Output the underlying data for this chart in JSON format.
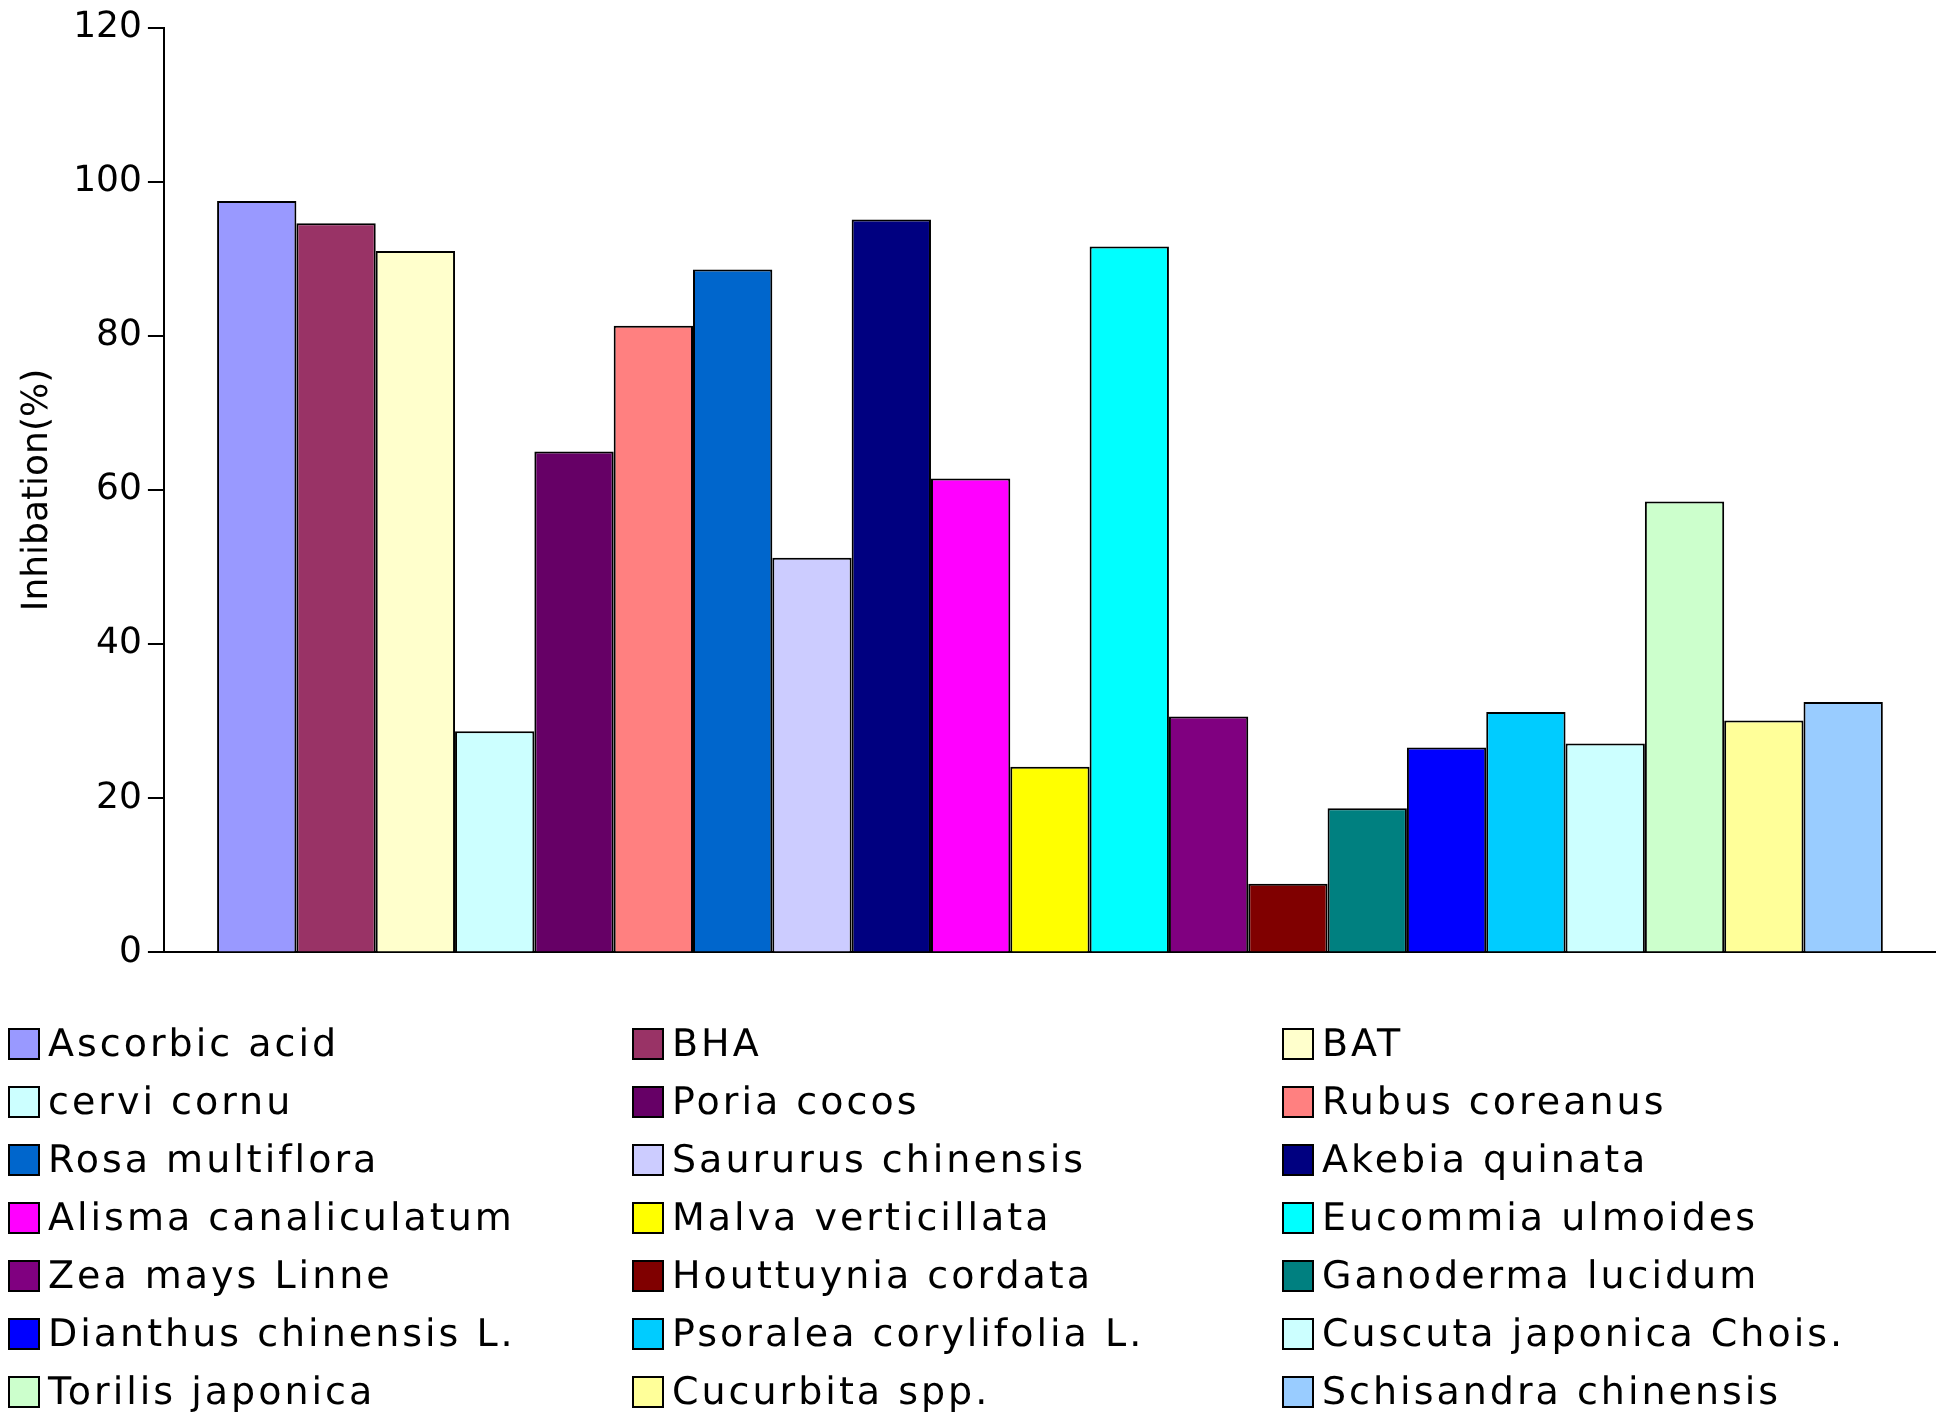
{
  "chart_data": {
    "type": "bar",
    "ylabel": "Inhibation(%)",
    "categories": [
      null
    ],
    "ylim": [
      0,
      120
    ],
    "yticks": [
      0,
      20,
      40,
      60,
      80,
      100,
      120
    ],
    "grid": false,
    "legend": "bottom",
    "series": [
      {
        "name": "Ascorbic acid",
        "color": "#9999ff",
        "values": [
          97.5
        ]
      },
      {
        "name": "BHA",
        "color": "#993366",
        "values": [
          94.6
        ]
      },
      {
        "name": "BAT",
        "color": "#ffffcc",
        "values": [
          91
        ]
      },
      {
        "name": "cervi cornu",
        "color": "#ccffff",
        "values": [
          28.7
        ]
      },
      {
        "name": "Poria cocos",
        "color": "#660066",
        "values": [
          65
        ]
      },
      {
        "name": "Rubus coreanus",
        "color": "#ff8080",
        "values": [
          81.3
        ]
      },
      {
        "name": "Rosa multiflora",
        "color": "#0066cc",
        "values": [
          88.6
        ]
      },
      {
        "name": "Saururus chinensis",
        "color": "#ccccff",
        "values": [
          51.2
        ]
      },
      {
        "name": "Akebia quinata",
        "color": "#000080",
        "values": [
          95.1
        ]
      },
      {
        "name": "Alisma canaliculatum",
        "color": "#ff00ff",
        "values": [
          61.5
        ]
      },
      {
        "name": "Malva verticillata",
        "color": "#ffff00",
        "values": [
          24.1
        ]
      },
      {
        "name": "Eucommia ulmoides",
        "color": "#00ffff",
        "values": [
          91.6
        ]
      },
      {
        "name": "Zea mays Linne",
        "color": "#800080",
        "values": [
          30.6
        ]
      },
      {
        "name": "Houttuynia cordata",
        "color": "#800000",
        "values": [
          8.9
        ]
      },
      {
        "name": "Ganoderma lucidum",
        "color": "#008080",
        "values": [
          18.7
        ]
      },
      {
        "name": "Dianthus chinensis L.",
        "color": "#0000ff",
        "values": [
          26.6
        ]
      },
      {
        "name": "Psoralea corylifolia L.",
        "color": "#00ccff",
        "values": [
          31.2
        ]
      },
      {
        "name": "Cuscuta japonica Chois.",
        "color": "#ccffff",
        "values": [
          27.1
        ]
      },
      {
        "name": "Torilis japonica",
        "color": "#ccffcc",
        "values": [
          58.5
        ]
      },
      {
        "name": "Cucurbita spp.",
        "color": "#ffff99",
        "values": [
          30.1
        ]
      },
      {
        "name": "Schisandra chinensis",
        "color": "#99ccff",
        "values": [
          32.5
        ]
      }
    ]
  }
}
